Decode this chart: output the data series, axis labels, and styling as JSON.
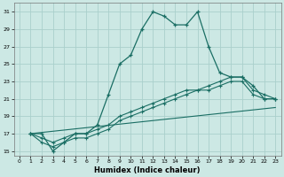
{
  "xlabel": "Humidex (Indice chaleur)",
  "bg_color": "#cce8e4",
  "grid_color": "#aad0cc",
  "line_color": "#1a6e64",
  "xlim": [
    -0.5,
    23.5
  ],
  "ylim": [
    14.5,
    32
  ],
  "xticks": [
    0,
    1,
    2,
    3,
    4,
    5,
    6,
    7,
    8,
    9,
    10,
    11,
    12,
    13,
    14,
    15,
    16,
    17,
    18,
    19,
    20,
    21,
    22,
    23
  ],
  "yticks": [
    15,
    17,
    19,
    21,
    23,
    25,
    27,
    29,
    31
  ],
  "line1_x": [
    1,
    2,
    3,
    4,
    5,
    6,
    7,
    8,
    9,
    10,
    11,
    12,
    13,
    14,
    15,
    16,
    17,
    18,
    19,
    20,
    21,
    22,
    23
  ],
  "line1_y": [
    17,
    17,
    15,
    16,
    17,
    17,
    18,
    21.5,
    25,
    26,
    29,
    31,
    30.5,
    29.5,
    29.5,
    31,
    27,
    24,
    23.5,
    23.5,
    22.5,
    21,
    21
  ],
  "line2_x": [
    1,
    2,
    3,
    4,
    5,
    6,
    7,
    8,
    9,
    10,
    11,
    12,
    13,
    14,
    15,
    16,
    17,
    18,
    19,
    20,
    21,
    22,
    23
  ],
  "line2_y": [
    17,
    16,
    15.5,
    16,
    16.5,
    16.5,
    17,
    17.5,
    18.5,
    19,
    19.5,
    20,
    20.5,
    21,
    21.5,
    22,
    22,
    22.5,
    23,
    23,
    21.5,
    21,
    21
  ],
  "line3_x": [
    1,
    2,
    3,
    4,
    5,
    6,
    7,
    8,
    9,
    10,
    11,
    12,
    13,
    14,
    15,
    16,
    17,
    18,
    19,
    20,
    21,
    22,
    23
  ],
  "line3_y": [
    17,
    16.5,
    16,
    16.5,
    17,
    17,
    17.5,
    18,
    19,
    19.5,
    20,
    20.5,
    21,
    21.5,
    22,
    22,
    22.5,
    23,
    23.5,
    23.5,
    22,
    21.5,
    21
  ],
  "line4_x": [
    1,
    23
  ],
  "line4_y": [
    17,
    20
  ]
}
